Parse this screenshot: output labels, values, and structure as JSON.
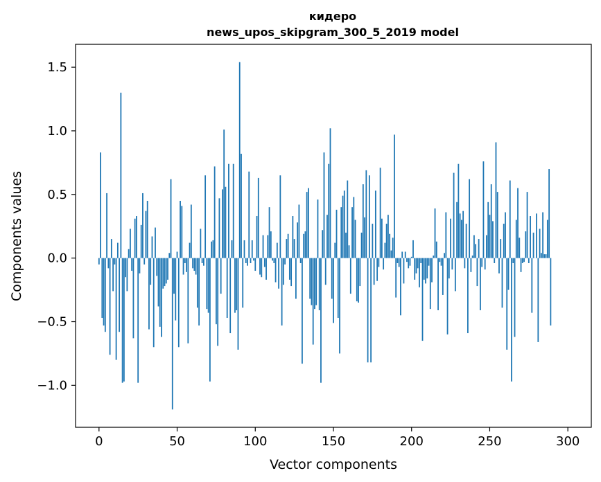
{
  "chart_data": {
    "type": "bar",
    "title_line1": "кидеро",
    "title_line2": "news_upos_skipgram_300_5_2019 model",
    "xlabel": "Vector components",
    "ylabel": "Components values",
    "xlim": [
      -15,
      315
    ],
    "ylim": [
      -1.33,
      1.68
    ],
    "xticks": [
      0,
      50,
      100,
      150,
      200,
      250,
      300
    ],
    "xtick_labels": [
      "0",
      "50",
      "100",
      "150",
      "200",
      "250",
      "300"
    ],
    "yticks": [
      -1.0,
      -0.5,
      0.0,
      0.5,
      1.0,
      1.5
    ],
    "ytick_labels": [
      "−1.0",
      "−0.5",
      "0.0",
      "0.5",
      "1.0",
      "1.5"
    ],
    "bar_color": "#1f77b4",
    "values": [
      -0.05,
      0.83,
      -0.47,
      -0.53,
      -0.58,
      0.51,
      -0.08,
      -0.76,
      0.15,
      -0.26,
      -0.05,
      -0.8,
      0.12,
      -0.58,
      1.3,
      -0.98,
      -0.97,
      -0.15,
      -0.26,
      0.07,
      0.23,
      -0.1,
      -0.63,
      0.31,
      0.33,
      -0.98,
      -0.12,
      0.26,
      0.51,
      -0.05,
      0.37,
      0.45,
      -0.56,
      -0.21,
      0.17,
      -0.7,
      0.24,
      -0.14,
      -0.38,
      -0.54,
      -0.62,
      -0.24,
      -0.22,
      -0.2,
      -0.17,
      0.04,
      0.62,
      -1.19,
      -0.28,
      -0.49,
      0.05,
      -0.7,
      0.45,
      0.41,
      -0.13,
      -0.04,
      -0.11,
      -0.67,
      0.12,
      0.42,
      -0.08,
      -0.1,
      -0.13,
      -0.39,
      -0.53,
      0.23,
      -0.04,
      -0.06,
      0.65,
      -0.4,
      -0.43,
      -0.97,
      0.13,
      0.14,
      0.72,
      -0.52,
      -0.69,
      0.47,
      -0.28,
      0.54,
      1.01,
      0.56,
      -0.47,
      0.74,
      -0.59,
      0.14,
      0.74,
      -0.43,
      -0.41,
      -0.72,
      1.54,
      0.82,
      -0.39,
      0.14,
      -0.04,
      -0.06,
      0.68,
      -0.04,
      0.14,
      -0.02,
      -0.1,
      0.33,
      0.63,
      -0.13,
      -0.15,
      0.18,
      -0.07,
      -0.17,
      0.18,
      0.4,
      0.21,
      -0.02,
      -0.04,
      -0.19,
      0.12,
      -0.24,
      0.65,
      -0.53,
      -0.21,
      -0.05,
      0.15,
      0.19,
      -0.17,
      -0.22,
      0.33,
      0.15,
      -0.32,
      0.28,
      0.42,
      -0.04,
      -0.83,
      0.19,
      0.21,
      0.52,
      0.55,
      -0.32,
      -0.37,
      -0.68,
      -0.4,
      -0.37,
      0.46,
      -0.41,
      -0.98,
      0.22,
      0.83,
      -0.21,
      0.34,
      0.74,
      1.02,
      -0.32,
      -0.51,
      0.12,
      0.38,
      -0.47,
      -0.75,
      0.4,
      0.49,
      0.53,
      0.2,
      0.61,
      0.1,
      -0.28,
      0.4,
      0.48,
      0.3,
      -0.34,
      -0.35,
      -0.22,
      0.2,
      0.58,
      0.32,
      0.69,
      -0.82,
      0.65,
      -0.82,
      0.27,
      -0.21,
      0.53,
      -0.18,
      -0.07,
      0.71,
      0.31,
      -0.09,
      0.12,
      0.27,
      0.34,
      0.19,
      0.06,
      0.16,
      0.97,
      -0.31,
      -0.04,
      -0.07,
      -0.45,
      0.05,
      -0.2,
      0.05,
      -0.03,
      -0.08,
      -0.06,
      0.01,
      0.14,
      -0.17,
      -0.12,
      -0.08,
      -0.23,
      -0.04,
      -0.65,
      -0.17,
      -0.2,
      -0.16,
      -0.06,
      -0.4,
      -0.19,
      0.02,
      0.39,
      0.13,
      -0.41,
      -0.03,
      -0.06,
      -0.29,
      0.04,
      0.36,
      -0.6,
      -0.16,
      0.31,
      -0.09,
      0.67,
      -0.26,
      0.44,
      0.74,
      0.35,
      0.3,
      0.37,
      -0.08,
      0.27,
      -0.59,
      0.62,
      -0.11,
      0.02,
      0.18,
      0.11,
      -0.22,
      0.15,
      -0.41,
      -0.07,
      0.76,
      -0.09,
      0.18,
      0.44,
      0.34,
      0.58,
      0.29,
      -0.04,
      0.91,
      0.52,
      -0.12,
      0.15,
      -0.39,
      0.27,
      0.36,
      -0.72,
      -0.25,
      0.61,
      -0.97,
      -0.04,
      -0.62,
      0.3,
      0.55,
      0.16,
      -0.11,
      -0.04,
      -0.03,
      0.21,
      0.52,
      -0.04,
      0.33,
      -0.43,
      0.2,
      0.0,
      0.35,
      -0.66,
      0.23,
      0.04,
      0.36,
      0.03,
      0.03,
      0.3,
      0.7,
      -0.53
    ]
  }
}
